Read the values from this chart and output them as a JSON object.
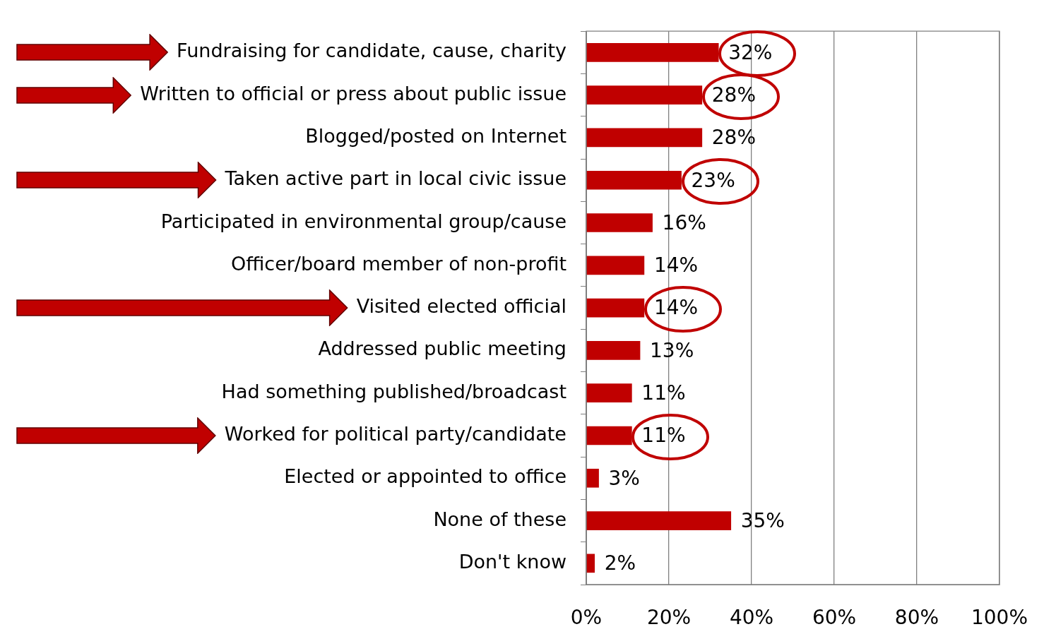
{
  "chart_data": {
    "type": "bar",
    "orientation": "horizontal",
    "categories": [
      "Fundraising for candidate, cause, charity",
      "Written to official or press about public issue",
      "Blogged/posted on Internet",
      "Taken active part in local civic issue",
      "Participated in environmental group/cause",
      "Officer/board member of non-profit",
      "Visited elected official",
      "Addressed public meeting",
      "Had something published/broadcast",
      "Worked for political party/candidate",
      "Elected or appointed to office",
      "None of these",
      "Don't know"
    ],
    "values": [
      32,
      28,
      28,
      23,
      16,
      14,
      14,
      13,
      11,
      11,
      3,
      35,
      2
    ],
    "value_labels": [
      "32%",
      "28%",
      "28%",
      "23%",
      "16%",
      "14%",
      "14%",
      "13%",
      "11%",
      "11%",
      "3%",
      "35%",
      "2%"
    ],
    "color": "#c00000",
    "xlim": [
      0,
      100
    ],
    "xticks": [
      {
        "value": 0,
        "label": "0%"
      },
      {
        "value": 20,
        "label": "20%"
      },
      {
        "value": 40,
        "label": "40%"
      },
      {
        "value": 60,
        "label": "60%"
      },
      {
        "value": 80,
        "label": "80%"
      },
      {
        "value": 100,
        "label": "100%"
      }
    ],
    "grid": "x",
    "legend": false
  }
}
